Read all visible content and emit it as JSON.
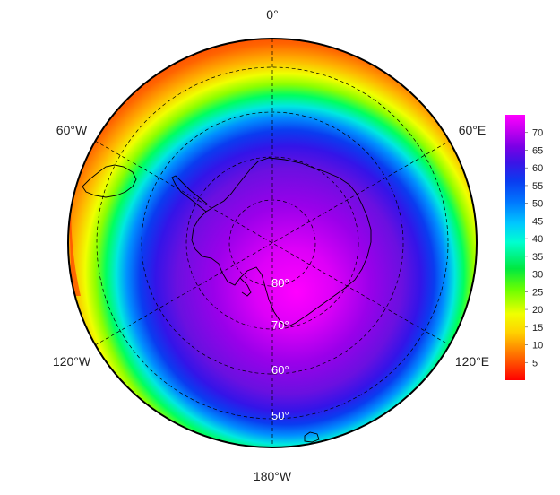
{
  "map": {
    "projection": "south-polar-stereographic",
    "longitude_labels": {
      "top": "0°",
      "upper_left": "60°W",
      "upper_right": "60°E",
      "lower_left": "120°W",
      "lower_right": "120°E",
      "bottom": "180°W"
    },
    "latitude_labels": [
      "80°",
      "70°",
      "60°",
      "50°"
    ],
    "colorbar": {
      "ticks": [
        "70",
        "65",
        "60",
        "55",
        "50",
        "45",
        "40",
        "35",
        "30",
        "25",
        "20",
        "15",
        "10",
        "5"
      ],
      "range": [
        0,
        75
      ],
      "colors": [
        "#ff0000",
        "#ff6a00",
        "#ffd200",
        "#f0ff00",
        "#6cff00",
        "#00e840",
        "#00ffd0",
        "#00c8ff",
        "#0078ff",
        "#0a3cf0",
        "#3c14e6",
        "#7a00e6",
        "#c000f0",
        "#ff00ff"
      ]
    },
    "colors": {
      "coastline": "#000000",
      "grid": "#000000",
      "border": "#000000"
    }
  }
}
